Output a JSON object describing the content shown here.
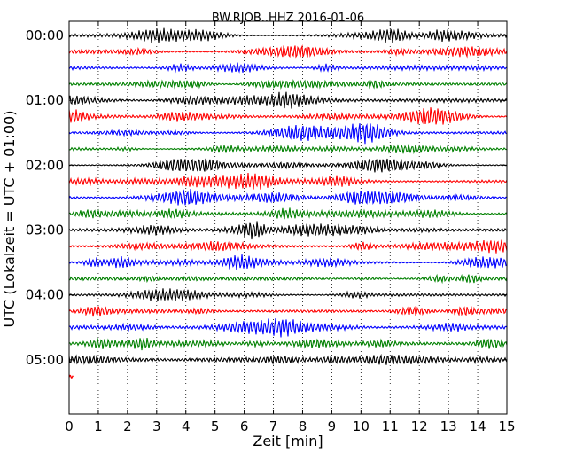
{
  "chart_data": {
    "type": "line",
    "title": "BW.RJOB..HHZ 2016-01-06",
    "xlabel": "Zeit  [min]",
    "ylabel": "UTC (Lokalzeit = UTC + 01:00)",
    "xlim": [
      0,
      15
    ],
    "ylim_hours": [
      0,
      6
    ],
    "x_ticks": [
      "0",
      "1",
      "2",
      "3",
      "4",
      "5",
      "6",
      "7",
      "8",
      "9",
      "10",
      "11",
      "12",
      "13",
      "14",
      "15"
    ],
    "y_ticks": [
      {
        "label": "00:00",
        "hour": 0
      },
      {
        "label": "01:00",
        "hour": 1
      },
      {
        "label": "02:00",
        "hour": 2
      },
      {
        "label": "03:00",
        "hour": 3
      },
      {
        "label": "04:00",
        "hour": 4
      },
      {
        "label": "05:00",
        "hour": 5
      }
    ],
    "grid": {
      "vertical": true,
      "style": "dotted"
    },
    "trace_interval_minutes": 15,
    "trace_colors": [
      "#000000",
      "#ff0000",
      "#0000ff",
      "#008000"
    ],
    "trace_count": 21,
    "last_partial_trace_minutes": 0.15
  }
}
